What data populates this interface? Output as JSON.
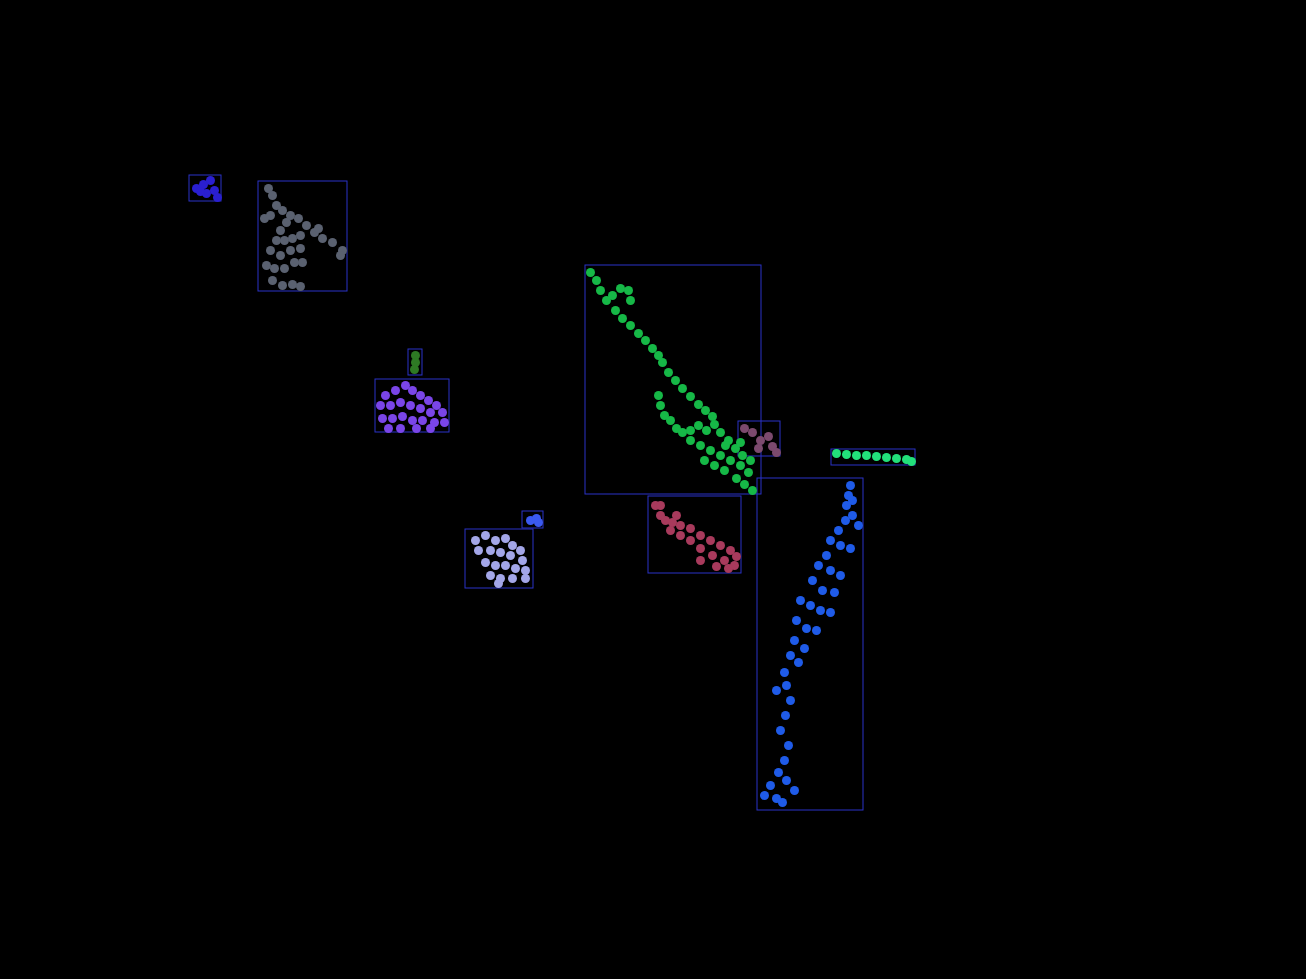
{
  "chart_data": {
    "type": "scatter",
    "xlim": [
      0,
      1306
    ],
    "ylim": [
      0,
      979
    ],
    "tick_labels": false,
    "series": [
      {
        "color": "#2a1fd0",
        "box": [
          189,
          175,
          221,
          201
        ],
        "values": [
          [
            196,
            188
          ],
          [
            203,
            184
          ],
          [
            210,
            180
          ],
          [
            214,
            190
          ],
          [
            206,
            193
          ],
          [
            217,
            197
          ],
          [
            200,
            191
          ]
        ]
      },
      {
        "color": "#5a6170",
        "box": [
          258,
          181,
          347,
          291
        ],
        "values": [
          [
            268,
            188
          ],
          [
            272,
            195
          ],
          [
            276,
            205
          ],
          [
            282,
            210
          ],
          [
            290,
            215
          ],
          [
            298,
            218
          ],
          [
            306,
            225
          ],
          [
            314,
            232
          ],
          [
            322,
            238
          ],
          [
            332,
            242
          ],
          [
            342,
            250
          ],
          [
            318,
            228
          ],
          [
            286,
            222
          ],
          [
            280,
            230
          ],
          [
            276,
            240
          ],
          [
            284,
            240
          ],
          [
            292,
            238
          ],
          [
            300,
            235
          ],
          [
            270,
            250
          ],
          [
            280,
            255
          ],
          [
            290,
            250
          ],
          [
            300,
            248
          ],
          [
            266,
            265
          ],
          [
            274,
            268
          ],
          [
            284,
            268
          ],
          [
            294,
            262
          ],
          [
            302,
            262
          ],
          [
            272,
            280
          ],
          [
            282,
            285
          ],
          [
            292,
            284
          ],
          [
            300,
            286
          ],
          [
            264,
            218
          ],
          [
            270,
            215
          ],
          [
            340,
            255
          ]
        ]
      },
      {
        "color": "#2e7a24",
        "box": [
          408,
          349,
          422,
          375
        ],
        "values": [
          [
            415,
            355
          ],
          [
            415,
            362
          ],
          [
            414,
            369
          ]
        ]
      },
      {
        "color": "#7a45e8",
        "box": [
          375,
          379,
          449,
          432
        ],
        "values": [
          [
            385,
            395
          ],
          [
            395,
            390
          ],
          [
            405,
            385
          ],
          [
            412,
            390
          ],
          [
            420,
            395
          ],
          [
            428,
            400
          ],
          [
            436,
            405
          ],
          [
            442,
            412
          ],
          [
            380,
            405
          ],
          [
            390,
            405
          ],
          [
            400,
            402
          ],
          [
            410,
            405
          ],
          [
            420,
            408
          ],
          [
            430,
            412
          ],
          [
            382,
            418
          ],
          [
            392,
            418
          ],
          [
            402,
            416
          ],
          [
            412,
            420
          ],
          [
            422,
            420
          ],
          [
            434,
            422
          ],
          [
            444,
            422
          ],
          [
            388,
            428
          ],
          [
            400,
            428
          ],
          [
            416,
            428
          ],
          [
            430,
            428
          ]
        ]
      },
      {
        "color": "#a3a6e8",
        "box": [
          465,
          529,
          533,
          588
        ],
        "values": [
          [
            475,
            540
          ],
          [
            485,
            535
          ],
          [
            495,
            540
          ],
          [
            505,
            538
          ],
          [
            512,
            545
          ],
          [
            520,
            550
          ],
          [
            478,
            550
          ],
          [
            490,
            550
          ],
          [
            500,
            552
          ],
          [
            510,
            555
          ],
          [
            522,
            560
          ],
          [
            485,
            562
          ],
          [
            495,
            565
          ],
          [
            505,
            565
          ],
          [
            515,
            568
          ],
          [
            525,
            570
          ],
          [
            490,
            575
          ],
          [
            500,
            578
          ],
          [
            512,
            578
          ],
          [
            525,
            578
          ],
          [
            498,
            583
          ]
        ]
      },
      {
        "color": "#3b5af0",
        "box": [
          522,
          511,
          543,
          528
        ],
        "values": [
          [
            530,
            520
          ],
          [
            536,
            518
          ],
          [
            538,
            522
          ]
        ]
      },
      {
        "color": "#16b847",
        "box": [
          585,
          265,
          761,
          494
        ],
        "values": [
          [
            590,
            272
          ],
          [
            596,
            280
          ],
          [
            600,
            290
          ],
          [
            606,
            300
          ],
          [
            612,
            295
          ],
          [
            620,
            288
          ],
          [
            628,
            290
          ],
          [
            630,
            300
          ],
          [
            615,
            310
          ],
          [
            622,
            318
          ],
          [
            630,
            325
          ],
          [
            638,
            333
          ],
          [
            645,
            340
          ],
          [
            652,
            348
          ],
          [
            658,
            355
          ],
          [
            662,
            362
          ],
          [
            668,
            372
          ],
          [
            675,
            380
          ],
          [
            682,
            388
          ],
          [
            690,
            396
          ],
          [
            698,
            404
          ],
          [
            705,
            410
          ],
          [
            712,
            416
          ],
          [
            658,
            395
          ],
          [
            660,
            405
          ],
          [
            664,
            415
          ],
          [
            670,
            420
          ],
          [
            676,
            428
          ],
          [
            682,
            432
          ],
          [
            690,
            430
          ],
          [
            698,
            425
          ],
          [
            706,
            430
          ],
          [
            714,
            424
          ],
          [
            720,
            432
          ],
          [
            728,
            440
          ],
          [
            735,
            448
          ],
          [
            742,
            455
          ],
          [
            690,
            440
          ],
          [
            700,
            445
          ],
          [
            710,
            450
          ],
          [
            720,
            455
          ],
          [
            730,
            460
          ],
          [
            740,
            465
          ],
          [
            748,
            472
          ],
          [
            704,
            460
          ],
          [
            714,
            465
          ],
          [
            724,
            470
          ],
          [
            736,
            478
          ],
          [
            744,
            484
          ],
          [
            752,
            490
          ],
          [
            725,
            445
          ],
          [
            740,
            442
          ],
          [
            750,
            460
          ]
        ]
      },
      {
        "color": "#7c4a6e",
        "box": [
          738,
          421,
          780,
          456
        ],
        "values": [
          [
            744,
            428
          ],
          [
            752,
            432
          ],
          [
            760,
            440
          ],
          [
            768,
            436
          ],
          [
            772,
            446
          ],
          [
            776,
            452
          ],
          [
            758,
            448
          ]
        ]
      },
      {
        "color": "#22e07a",
        "box": [
          831,
          449,
          915,
          465
        ],
        "values": [
          [
            836,
            453
          ],
          [
            846,
            454
          ],
          [
            856,
            455
          ],
          [
            866,
            455
          ],
          [
            876,
            456
          ],
          [
            886,
            457
          ],
          [
            896,
            458
          ],
          [
            906,
            459
          ],
          [
            911,
            461
          ]
        ]
      },
      {
        "color": "#a83a5c",
        "box": [
          648,
          496,
          741,
          573
        ],
        "values": [
          [
            655,
            505
          ],
          [
            660,
            515
          ],
          [
            665,
            520
          ],
          [
            672,
            522
          ],
          [
            680,
            525
          ],
          [
            690,
            528
          ],
          [
            700,
            535
          ],
          [
            710,
            540
          ],
          [
            720,
            545
          ],
          [
            730,
            550
          ],
          [
            736,
            556
          ],
          [
            670,
            530
          ],
          [
            680,
            535
          ],
          [
            690,
            540
          ],
          [
            700,
            548
          ],
          [
            712,
            555
          ],
          [
            724,
            560
          ],
          [
            734,
            565
          ],
          [
            700,
            560
          ],
          [
            716,
            566
          ],
          [
            728,
            568
          ],
          [
            660,
            505
          ],
          [
            676,
            515
          ]
        ]
      },
      {
        "color": "#1f5be8",
        "box": [
          757,
          478,
          863,
          810
        ],
        "values": [
          [
            850,
            485
          ],
          [
            848,
            495
          ],
          [
            846,
            505
          ],
          [
            852,
            515
          ],
          [
            858,
            525
          ],
          [
            845,
            520
          ],
          [
            838,
            530
          ],
          [
            830,
            540
          ],
          [
            840,
            545
          ],
          [
            850,
            548
          ],
          [
            826,
            555
          ],
          [
            818,
            565
          ],
          [
            830,
            570
          ],
          [
            840,
            575
          ],
          [
            812,
            580
          ],
          [
            822,
            590
          ],
          [
            834,
            592
          ],
          [
            800,
            600
          ],
          [
            810,
            605
          ],
          [
            820,
            610
          ],
          [
            830,
            612
          ],
          [
            796,
            620
          ],
          [
            806,
            628
          ],
          [
            816,
            630
          ],
          [
            794,
            640
          ],
          [
            804,
            648
          ],
          [
            790,
            655
          ],
          [
            798,
            662
          ],
          [
            784,
            672
          ],
          [
            776,
            690
          ],
          [
            786,
            685
          ],
          [
            790,
            700
          ],
          [
            785,
            715
          ],
          [
            780,
            730
          ],
          [
            788,
            745
          ],
          [
            784,
            760
          ],
          [
            778,
            772
          ],
          [
            786,
            780
          ],
          [
            770,
            785
          ],
          [
            764,
            795
          ],
          [
            776,
            798
          ],
          [
            782,
            802
          ],
          [
            794,
            790
          ],
          [
            852,
            500
          ]
        ]
      }
    ]
  }
}
